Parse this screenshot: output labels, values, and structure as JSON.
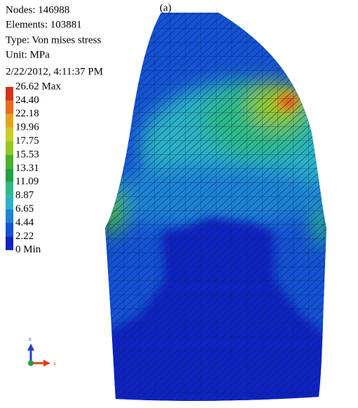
{
  "info": {
    "nodes": "Nodes: 146988",
    "elements": "Elements: 103881",
    "type": "Type: Von mises stress",
    "unit": "Unit: MPa",
    "date": "2/22/2012, 4:11:37 PM"
  },
  "panel_label": "(a)",
  "legend": {
    "labels": [
      "26.62 Max",
      "24.40",
      "22.18",
      "19.96",
      "17.75",
      "15.53",
      "13.31",
      "11.09",
      "8.87",
      "6.65",
      "4.44",
      "2.22",
      "0 Min"
    ],
    "colors": [
      "#d8321a",
      "#ea6a1c",
      "#e2a41e",
      "#cccc22",
      "#94c824",
      "#46b22e",
      "#1fa044",
      "#2cba86",
      "#2cb2c6",
      "#1f82d6",
      "#1452d6",
      "#1022c4"
    ]
  },
  "triad": {
    "z": "z",
    "x": "x"
  }
}
